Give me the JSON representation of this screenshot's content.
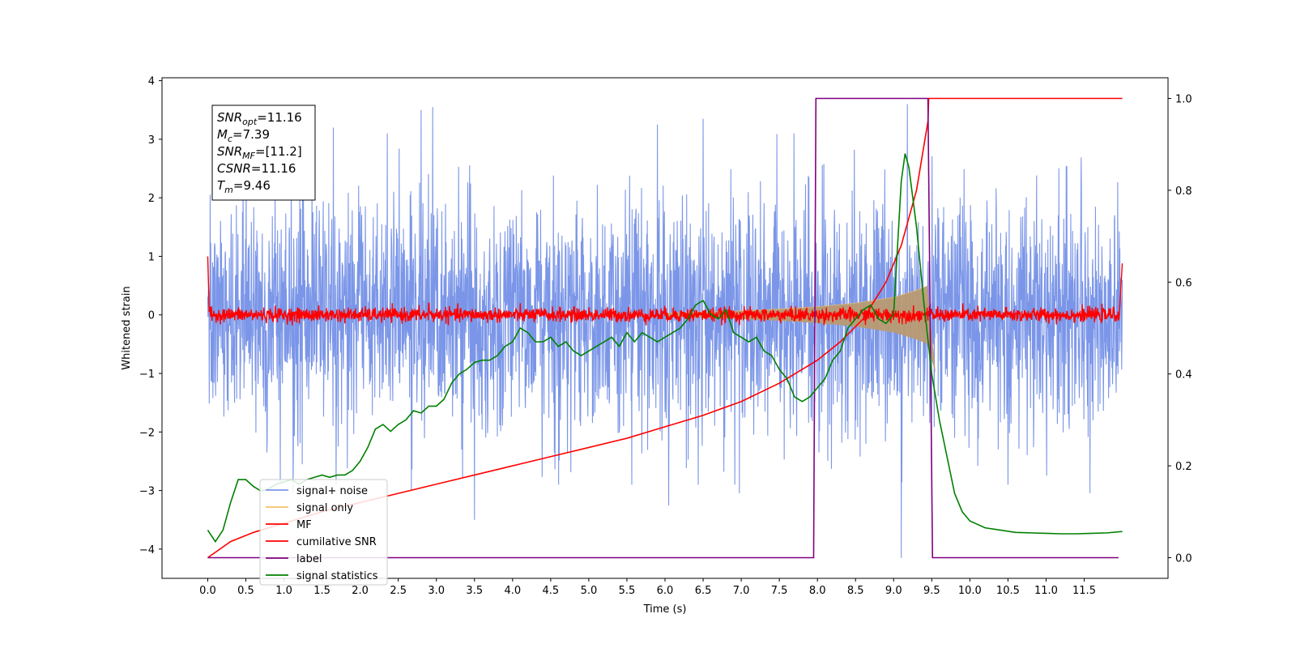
{
  "chart_data": {
    "type": "line",
    "xlabel": "Time (s)",
    "ylabel": "Whitened strain",
    "xlim": [
      -0.6,
      12.6
    ],
    "ylim": [
      -4.5,
      4.05
    ],
    "y2lim": [
      -0.045,
      1.045
    ],
    "xticks": [
      0.0,
      0.5,
      1.0,
      1.5,
      2.0,
      2.5,
      3.0,
      3.5,
      4.0,
      4.5,
      5.0,
      5.5,
      6.0,
      6.5,
      7.0,
      7.5,
      8.0,
      8.5,
      9.0,
      9.5,
      10.0,
      10.5,
      11.0,
      11.5
    ],
    "xtick_labels": [
      "0.0",
      "0.5",
      "1.0",
      "1.5",
      "2.0",
      "2.5",
      "3.0",
      "3.5",
      "4.0",
      "4.5",
      "5.0",
      "5.5",
      "6.0",
      "6.5",
      "7.0",
      "7.5",
      "8.0",
      "8.5",
      "9.0",
      "9.5",
      "10.0",
      "10.5",
      "11.0",
      "11.5"
    ],
    "yticks": [
      4,
      3,
      2,
      1,
      0,
      -1,
      -2,
      -3,
      -4
    ],
    "ytick_labels": [
      "4",
      "3",
      "2",
      "1",
      "0",
      "−1",
      "−2",
      "−3",
      "−4"
    ],
    "y2ticks": [
      1.0,
      0.8,
      0.6,
      0.4,
      0.2,
      0.0
    ],
    "y2tick_labels": [
      "1.0",
      "0.8",
      "0.6",
      "0.4",
      "0.2",
      "0.0"
    ],
    "legend_position": "lower-left",
    "colors": {
      "signal_noise": "#7b96e8",
      "signal_only": "#f4c26a",
      "signal_fill": "#b99a72",
      "mf": "#ff0000",
      "cumulative_snr": "#ff0000",
      "label": "#800080",
      "signal_statistics": "#008000"
    },
    "stats_box": [
      {
        "sym": "SNR",
        "sub": "opt",
        "value": "=11.16"
      },
      {
        "sym": "M",
        "sub": "c",
        "value": "=7.39"
      },
      {
        "sym": "SNR",
        "sub": "MF",
        "value": "=[11.2]"
      },
      {
        "sym": "CSNR",
        "sub": "",
        "value": "=11.16"
      },
      {
        "sym": "T",
        "sub": "m",
        "value": "=9.46"
      }
    ],
    "series": [
      {
        "name": "signal+ noise",
        "axis": "left",
        "style": "noise",
        "band_min": [
          -1.9,
          -1.75
        ],
        "band_max": [
          1.85,
          1.9
        ],
        "peaks": [
          [
            2.8,
            3.5
          ],
          [
            2.95,
            3.55
          ],
          [
            3.5,
            -3.5
          ],
          [
            9.1,
            -4.15
          ],
          [
            9.18,
            3.6
          ],
          [
            6.5,
            3.35
          ],
          [
            1.65,
            3.2
          ],
          [
            5.9,
            3.25
          ]
        ],
        "x_range": [
          0.0,
          12.0
        ]
      },
      {
        "name": "signal only",
        "axis": "left",
        "style": "chirp",
        "envelope": [
          [
            6.0,
            0.03
          ],
          [
            7.0,
            0.07
          ],
          [
            7.5,
            0.1
          ],
          [
            8.0,
            0.14
          ],
          [
            8.5,
            0.2
          ],
          [
            9.0,
            0.3
          ],
          [
            9.3,
            0.42
          ],
          [
            9.45,
            0.5
          ]
        ],
        "ringdown_end": 9.55
      },
      {
        "name": "MF",
        "axis": "left",
        "style": "noisy-line",
        "baseline": 0.0,
        "amplitude": 0.1,
        "points": [
          [
            0.0,
            1.0
          ],
          [
            0.02,
            0.05
          ],
          [
            2.9,
            0.33
          ],
          [
            11.97,
            0.05
          ],
          [
            12.0,
            0.88
          ]
        ]
      },
      {
        "name": "cumilative SNR",
        "axis": "right",
        "x": [
          0.0,
          0.3,
          0.6,
          1.0,
          1.5,
          2.0,
          2.5,
          3.0,
          3.5,
          4.0,
          4.5,
          5.0,
          5.5,
          6.0,
          6.5,
          7.0,
          7.5,
          8.0,
          8.3,
          8.6,
          8.9,
          9.1,
          9.3,
          9.45,
          9.46,
          9.5,
          10.0,
          11.0,
          12.0
        ],
        "y": [
          0.0,
          0.035,
          0.055,
          0.075,
          0.1,
          0.12,
          0.14,
          0.16,
          0.18,
          0.2,
          0.22,
          0.24,
          0.26,
          0.285,
          0.31,
          0.34,
          0.38,
          0.43,
          0.47,
          0.52,
          0.6,
          0.68,
          0.8,
          0.95,
          1.0,
          1.0,
          1.0,
          1.0,
          1.0
        ]
      },
      {
        "name": "label",
        "axis": "right",
        "x": [
          0.0,
          7.95,
          7.98,
          9.45,
          9.51,
          11.95
        ],
        "y": [
          0.0,
          0.0,
          1.0,
          1.0,
          0.0,
          0.0
        ]
      },
      {
        "name": "signal statistics",
        "axis": "right",
        "x": [
          0.0,
          0.1,
          0.2,
          0.3,
          0.4,
          0.5,
          0.6,
          0.7,
          0.8,
          0.9,
          1.0,
          1.1,
          1.2,
          1.3,
          1.4,
          1.5,
          1.6,
          1.7,
          1.8,
          1.9,
          2.0,
          2.1,
          2.2,
          2.3,
          2.4,
          2.5,
          2.6,
          2.7,
          2.8,
          2.9,
          3.0,
          3.1,
          3.2,
          3.3,
          3.4,
          3.5,
          3.6,
          3.7,
          3.8,
          3.9,
          4.0,
          4.1,
          4.2,
          4.3,
          4.4,
          4.5,
          4.6,
          4.7,
          4.8,
          4.9,
          5.0,
          5.1,
          5.2,
          5.3,
          5.4,
          5.5,
          5.6,
          5.7,
          5.8,
          5.9,
          6.0,
          6.1,
          6.2,
          6.3,
          6.4,
          6.5,
          6.6,
          6.7,
          6.8,
          6.9,
          7.0,
          7.1,
          7.2,
          7.3,
          7.4,
          7.5,
          7.6,
          7.7,
          7.8,
          7.9,
          8.0,
          8.1,
          8.2,
          8.3,
          8.4,
          8.5,
          8.6,
          8.7,
          8.8,
          8.9,
          9.0,
          9.1,
          9.15,
          9.2,
          9.3,
          9.4,
          9.5,
          9.6,
          9.7,
          9.8,
          9.9,
          10.0,
          10.2,
          10.4,
          10.6,
          10.8,
          11.0,
          11.2,
          11.4,
          11.6,
          11.8,
          12.0
        ],
        "y": [
          0.06,
          0.035,
          0.06,
          0.12,
          0.17,
          0.17,
          0.155,
          0.145,
          0.15,
          0.16,
          0.165,
          0.17,
          0.16,
          0.17,
          0.175,
          0.18,
          0.175,
          0.18,
          0.18,
          0.19,
          0.21,
          0.24,
          0.28,
          0.29,
          0.275,
          0.29,
          0.3,
          0.32,
          0.315,
          0.33,
          0.33,
          0.345,
          0.38,
          0.4,
          0.41,
          0.425,
          0.43,
          0.43,
          0.44,
          0.46,
          0.47,
          0.5,
          0.49,
          0.47,
          0.47,
          0.48,
          0.46,
          0.47,
          0.45,
          0.44,
          0.45,
          0.46,
          0.47,
          0.48,
          0.46,
          0.49,
          0.47,
          0.49,
          0.48,
          0.47,
          0.48,
          0.49,
          0.5,
          0.52,
          0.55,
          0.56,
          0.53,
          0.52,
          0.54,
          0.49,
          0.48,
          0.47,
          0.48,
          0.45,
          0.44,
          0.41,
          0.39,
          0.35,
          0.34,
          0.35,
          0.37,
          0.39,
          0.43,
          0.45,
          0.5,
          0.52,
          0.54,
          0.55,
          0.52,
          0.51,
          0.53,
          0.82,
          0.88,
          0.85,
          0.72,
          0.55,
          0.4,
          0.3,
          0.22,
          0.14,
          0.1,
          0.08,
          0.065,
          0.06,
          0.055,
          0.054,
          0.053,
          0.052,
          0.052,
          0.053,
          0.054,
          0.057
        ]
      }
    ],
    "legend": [
      {
        "label": "signal+ noise",
        "color": "#7b96e8"
      },
      {
        "label": "signal only",
        "color": "#f4c26a"
      },
      {
        "label": "MF",
        "color": "#ff0000"
      },
      {
        "label": "cumilative SNR",
        "color": "#ff0000"
      },
      {
        "label": "label",
        "color": "#800080"
      },
      {
        "label": "signal statistics",
        "color": "#008000"
      }
    ]
  }
}
